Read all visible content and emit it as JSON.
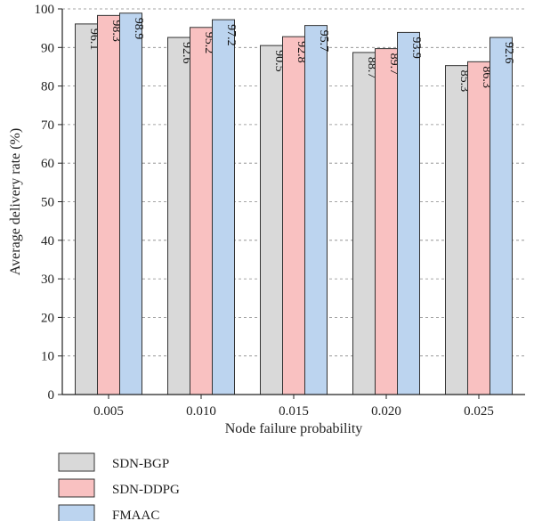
{
  "chart_data": {
    "type": "bar",
    "xlabel": "Node failure probability",
    "ylabel": "Average delivery rate (%)",
    "ylim": [
      0,
      100
    ],
    "yticks": [
      0,
      10,
      20,
      30,
      40,
      50,
      60,
      70,
      80,
      90,
      100
    ],
    "categories": [
      "0.005",
      "0.010",
      "0.015",
      "0.020",
      "0.025"
    ],
    "grid": "horizontal dashed",
    "legend_position": "bottom-left",
    "series": [
      {
        "name": "SDN-BGP",
        "color": "#d9d9d9",
        "values": [
          96.1,
          92.6,
          90.5,
          88.7,
          85.3
        ]
      },
      {
        "name": "SDN-DDPG",
        "color": "#f9c1c1",
        "values": [
          98.3,
          95.2,
          92.8,
          89.7,
          86.3
        ]
      },
      {
        "name": "FMAAC",
        "color": "#bcd4ef",
        "values": [
          98.9,
          97.2,
          95.7,
          93.9,
          92.6
        ]
      }
    ]
  }
}
